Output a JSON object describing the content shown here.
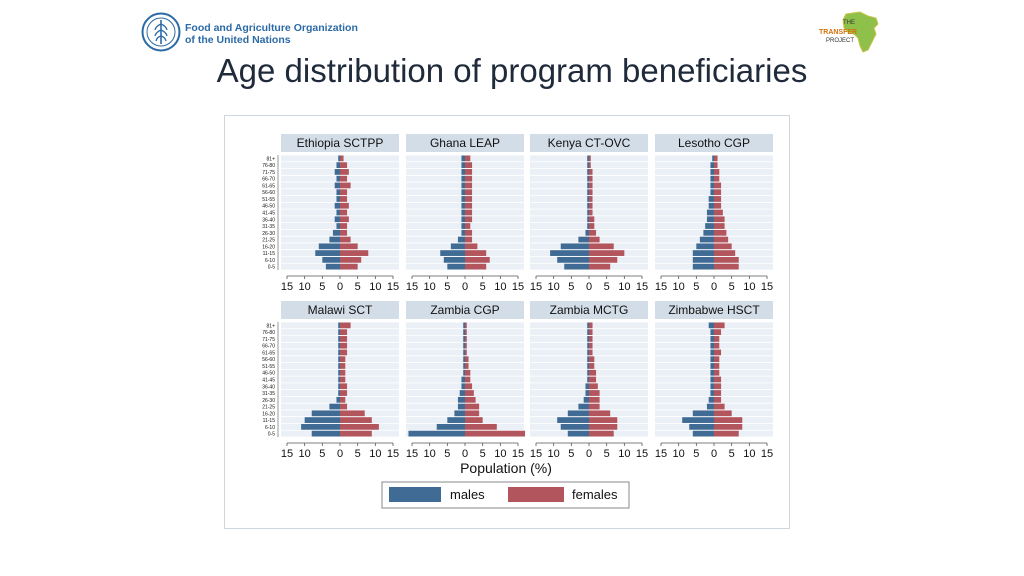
{
  "header": {
    "org_name_line1": "Food and Agriculture Organization",
    "org_name_line2": "of the United Nations",
    "org_logo_icon": "fao-logo-icon",
    "partner_logo_icon": "transfer-project-africa-icon",
    "partner_line1": "THE",
    "partner_line2": "TRANSFER",
    "partner_line3": "PROJECT"
  },
  "slide": {
    "title": "Age distribution of program beneficiaries"
  },
  "colors": {
    "males": "#3f6b94",
    "females": "#b2555d",
    "panel_bg": "#eaf0f6",
    "header_bg": "#d3dde8",
    "outer_bg": "#ffffff"
  },
  "chart_data": {
    "type": "bar",
    "subtype": "population-pyramid",
    "xlabel": "Population (%)",
    "xlim": [
      -15,
      15
    ],
    "xticks": [
      -15,
      -10,
      -5,
      0,
      5,
      10,
      15
    ],
    "xtick_labels": [
      "15",
      "10",
      "5",
      "0",
      "5",
      "10",
      "15"
    ],
    "age_groups": [
      "0-5",
      "6-10",
      "11-15",
      "16-20",
      "21-25",
      "26-30",
      "31-35",
      "36-40",
      "41-45",
      "46-50",
      "51-55",
      "56-60",
      "61-65",
      "66-70",
      "71-75",
      "76-80",
      "81+"
    ],
    "ytick_labels": [
      "81+",
      "76-80",
      "71-75",
      "66-70",
      "61-65",
      "56-60",
      "51-55",
      "46-50",
      "41-45",
      "36-40",
      "31-35",
      "26-30",
      "21-25",
      "16-20",
      "11-15",
      "6-10",
      "0-5"
    ],
    "legend": [
      {
        "key": "males",
        "label": "males"
      },
      {
        "key": "females",
        "label": "females"
      }
    ],
    "legend_position": "bottom",
    "panels": [
      {
        "title": "Ethiopia SCTPP",
        "males": [
          4,
          5,
          7,
          6,
          3,
          2,
          1,
          1.5,
          1,
          1.5,
          1,
          1,
          1.5,
          1,
          1.5,
          1,
          0.5
        ],
        "females": [
          5,
          6,
          8,
          5,
          3,
          2,
          2,
          2.5,
          2,
          2.5,
          2,
          2,
          3,
          2,
          2.5,
          2,
          1
        ]
      },
      {
        "title": "Ghana LEAP",
        "males": [
          5,
          6,
          7,
          4,
          2,
          1,
          1,
          1,
          1,
          1,
          1,
          1,
          1,
          1,
          1,
          1,
          1
        ],
        "females": [
          6,
          7,
          6,
          3.5,
          2,
          2,
          1.5,
          2,
          2,
          2,
          2,
          2,
          2,
          2,
          2,
          2,
          1.5
        ]
      },
      {
        "title": "Kenya CT-OVC",
        "males": [
          7,
          9,
          11,
          8,
          3,
          1,
          0.5,
          0.5,
          0.5,
          0.5,
          0.5,
          0.5,
          0.5,
          0.5,
          0.5,
          0.5,
          0.5
        ],
        "females": [
          6,
          8,
          10,
          7,
          3,
          2,
          1.5,
          1.5,
          1,
          1,
          1,
          1,
          1,
          1,
          1,
          0.5,
          0.5
        ]
      },
      {
        "title": "Lesotho CGP",
        "males": [
          6,
          6,
          6,
          5,
          4,
          3,
          2.5,
          2,
          2,
          1.5,
          1.5,
          1,
          1,
          1,
          1,
          1,
          0.5
        ],
        "females": [
          7,
          7,
          6,
          5,
          4,
          3.5,
          3,
          3,
          2.5,
          2,
          2,
          2,
          2,
          1.5,
          1.5,
          1,
          1
        ]
      },
      {
        "title": "Malawi SCT",
        "males": [
          8,
          11,
          10,
          8,
          3,
          1,
          0.5,
          0.5,
          0.5,
          0.5,
          0.5,
          0.5,
          0.5,
          0.5,
          0.5,
          0.5,
          0.5
        ],
        "females": [
          9,
          11,
          9,
          7,
          2,
          1.5,
          2,
          2,
          1.5,
          1.5,
          1.5,
          1.5,
          2,
          2,
          2,
          2,
          3
        ]
      },
      {
        "title": "Zambia CGP",
        "males": [
          16,
          8,
          5,
          3,
          2,
          2,
          1.5,
          1,
          1,
          0.5,
          0.5,
          0.5,
          0.5,
          0.5,
          0.5,
          0.5,
          0.5
        ],
        "females": [
          17,
          9,
          5,
          4,
          4,
          3,
          2.5,
          2,
          1.5,
          1.5,
          1,
          1,
          0.5,
          0.5,
          0.5,
          0.5,
          0.5
        ]
      },
      {
        "title": "Zambia MCTG",
        "males": [
          6,
          8,
          9,
          6,
          3,
          1.5,
          1,
          1,
          0.5,
          0.5,
          0.5,
          0.5,
          0.5,
          0.5,
          0.5,
          0.5,
          0.5
        ],
        "females": [
          7,
          8,
          8,
          6,
          3,
          3,
          3,
          2.5,
          2,
          2,
          1.5,
          1.5,
          1,
          1,
          1,
          1,
          1
        ]
      },
      {
        "title": "Zimbabwe HSCT",
        "males": [
          6,
          7,
          9,
          6,
          2,
          1.5,
          1,
          1,
          1,
          1,
          1,
          1,
          1,
          1,
          1,
          1,
          1.5
        ],
        "females": [
          7,
          8,
          8,
          5,
          3,
          2,
          2,
          2,
          2,
          1.5,
          1.5,
          1.5,
          2,
          1.5,
          1.5,
          2,
          3
        ]
      }
    ]
  }
}
